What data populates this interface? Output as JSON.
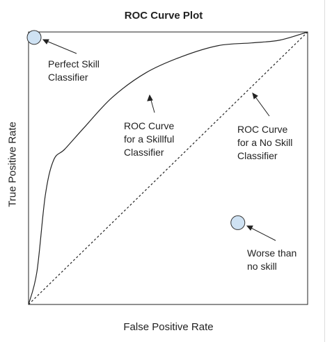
{
  "chart_data": {
    "type": "line",
    "title": "ROC Curve Plot",
    "xlabel": "False Positive Rate",
    "ylabel": "True Positive Rate",
    "xlim": [
      0,
      1
    ],
    "ylim": [
      0,
      1
    ],
    "grid": false,
    "series": [
      {
        "style": "solid",
        "x": [
          0,
          0.03,
          0.06,
          0.09,
          0.13,
          0.2,
          0.3,
          0.42,
          0.55,
          0.68,
          0.8,
          0.9,
          1.0
        ],
        "y": [
          0,
          0.12,
          0.4,
          0.53,
          0.57,
          0.65,
          0.76,
          0.85,
          0.91,
          0.95,
          0.96,
          0.97,
          1.0
        ]
      },
      {
        "style": "dashed",
        "x": [
          0,
          1
        ],
        "y": [
          0,
          1
        ]
      }
    ],
    "points": [
      {
        "x": 0.02,
        "y": 0.98,
        "color": "#cfe2f3"
      },
      {
        "x": 0.75,
        "y": 0.3,
        "color": "#cfe2f3"
      }
    ],
    "annotations": [
      {
        "id": "perfect",
        "text": "Perfect Skill\nClassifier"
      },
      {
        "id": "skillful",
        "text": "ROC Curve\nfor a Skillful\nClassifier"
      },
      {
        "id": "noskill",
        "text": "ROC Curve\nfor a No Skill\nClassifier"
      },
      {
        "id": "worse",
        "text": "Worse than\nno skill"
      }
    ]
  }
}
